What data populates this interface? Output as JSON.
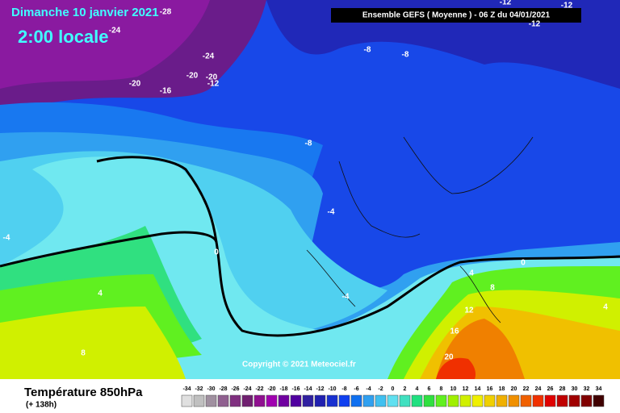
{
  "header": {
    "date": "Dimanche 10 janvier 2021",
    "time": "2:00 locale",
    "run": "Ensemble GEFS  ( Moyenne )  -  06 Z du 04/01/2021"
  },
  "footer": {
    "title": "Température 850hPa",
    "lead": "(+ 138h)",
    "copyright": "Copyright © 2021 Meteociel.fr"
  },
  "legend": {
    "values": [
      -34,
      -32,
      -30,
      -28,
      -26,
      -24,
      -22,
      -20,
      -18,
      -16,
      -14,
      -12,
      -10,
      -8,
      -6,
      -4,
      -2,
      0,
      2,
      4,
      6,
      8,
      10,
      12,
      14,
      16,
      18,
      20,
      22,
      24,
      26,
      28,
      30,
      32,
      34
    ],
    "colors": [
      "#e0e0e0",
      "#c0c0c0",
      "#a090a0",
      "#906090",
      "#803080",
      "#702070",
      "#901090",
      "#a000b0",
      "#7000a0",
      "#5000a0",
      "#3020a0",
      "#2020b0",
      "#1830d0",
      "#1040f0",
      "#1070f0",
      "#30a0f0",
      "#40c0f0",
      "#60e0f0",
      "#40e0c0",
      "#20e080",
      "#30e040",
      "#60f020",
      "#a0f000",
      "#d0f000",
      "#f0f000",
      "#f0d000",
      "#f0b000",
      "#f09000",
      "#f06000",
      "#f03000",
      "#e00000",
      "#c00000",
      "#a00000",
      "#800000",
      "#400000"
    ]
  },
  "contour_labels": [
    -28,
    -24,
    -24,
    -20,
    -20,
    -20,
    -12,
    -16,
    -12,
    -12,
    -12,
    -8,
    -8,
    -8,
    -4,
    -4,
    0,
    0,
    4,
    8,
    4,
    4,
    -4,
    12,
    16,
    8,
    20
  ]
}
